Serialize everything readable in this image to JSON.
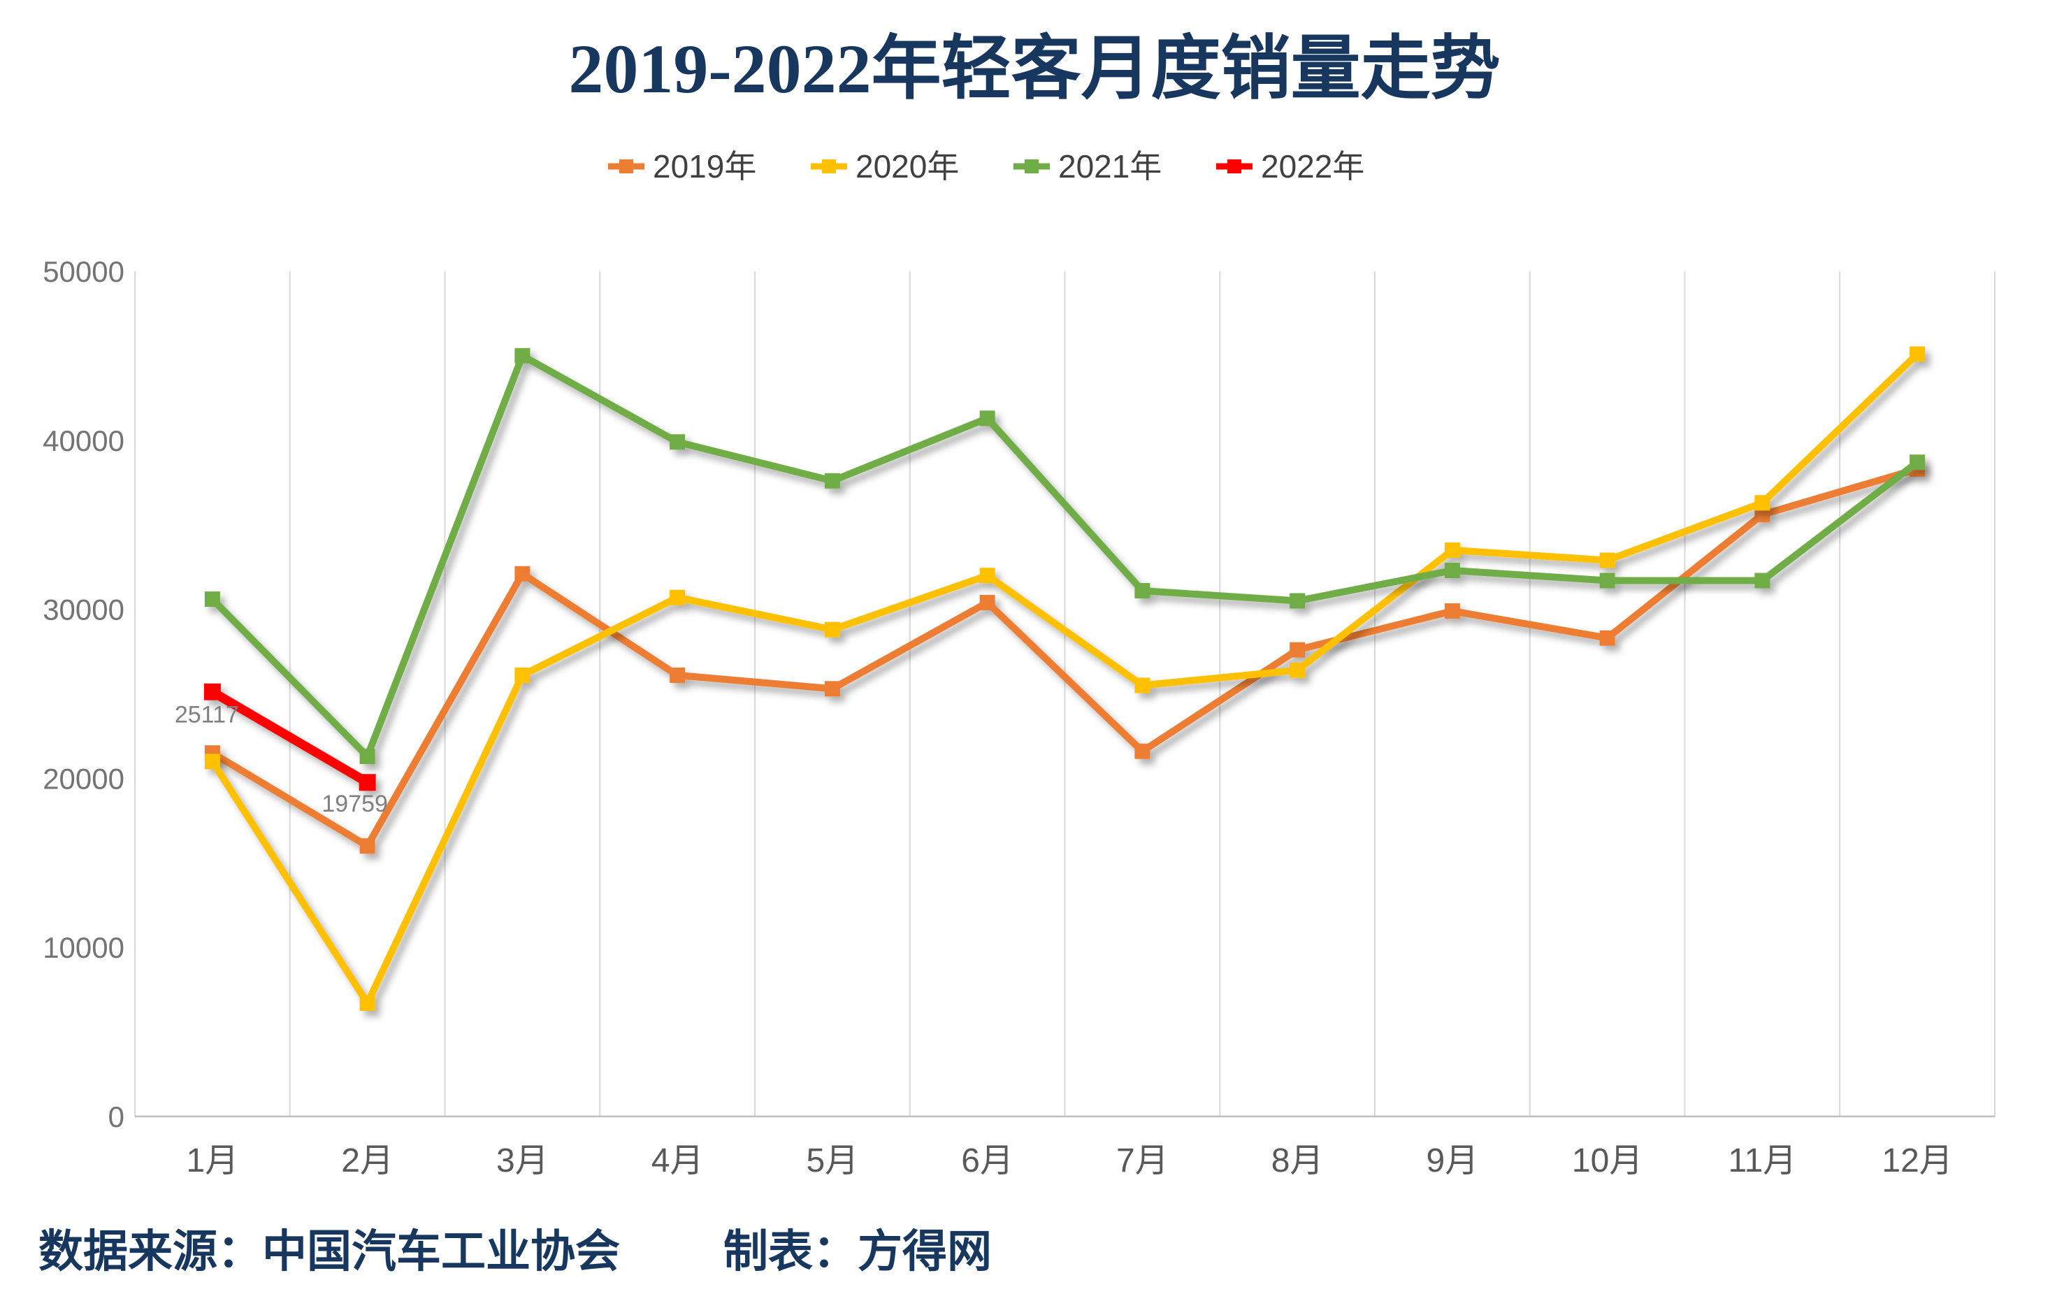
{
  "title": "2019-2022年轻客月度销量走势",
  "footer": {
    "source": "数据来源：中国汽车工业协会",
    "maker": "制表：方得网"
  },
  "colors": {
    "title": "#17375E",
    "footer": "#17375E",
    "legend_text": "#404040",
    "axis_text": "#595959",
    "y_axis_text": "#737373",
    "gridline": "#D9D9D9",
    "axis_line": "#BFBFBF",
    "annotation_text": "#808080",
    "background": "#FFFFFF"
  },
  "chart_data": {
    "type": "line",
    "title": "2019-2022年轻客月度销量走势",
    "xlabel": "",
    "ylabel": "",
    "categories": [
      "1月",
      "2月",
      "3月",
      "4月",
      "5月",
      "6月",
      "7月",
      "8月",
      "9月",
      "10月",
      "11月",
      "12月"
    ],
    "y_ticks": [
      0,
      10000,
      20000,
      30000,
      40000,
      50000
    ],
    "ylim": [
      0,
      50000
    ],
    "grid": "vertical-only",
    "legend_position": "top",
    "marker": "square",
    "series": [
      {
        "name": "2019年",
        "color": "#ED7D31",
        "values": [
          21500,
          16000,
          32100,
          26100,
          25300,
          30400,
          21600,
          27600,
          29900,
          28300,
          35600,
          38300
        ]
      },
      {
        "name": "2020年",
        "color": "#FFC000",
        "values": [
          21000,
          6700,
          26100,
          30700,
          28800,
          32000,
          25500,
          26400,
          33500,
          32900,
          36300,
          45100
        ]
      },
      {
        "name": "2021年",
        "color": "#70AD47",
        "values": [
          30600,
          21300,
          45000,
          39900,
          37600,
          41300,
          31100,
          30500,
          32300,
          31700,
          31700,
          38700
        ]
      },
      {
        "name": "2022年",
        "color": "#FF0000",
        "values": [
          25117,
          19759,
          null,
          null,
          null,
          null,
          null,
          null,
          null,
          null,
          null,
          null
        ]
      }
    ],
    "annotations": [
      {
        "series": "2022年",
        "point_index": 0,
        "text": "25117"
      },
      {
        "series": "2022年",
        "point_index": 1,
        "text": "19759"
      }
    ]
  }
}
